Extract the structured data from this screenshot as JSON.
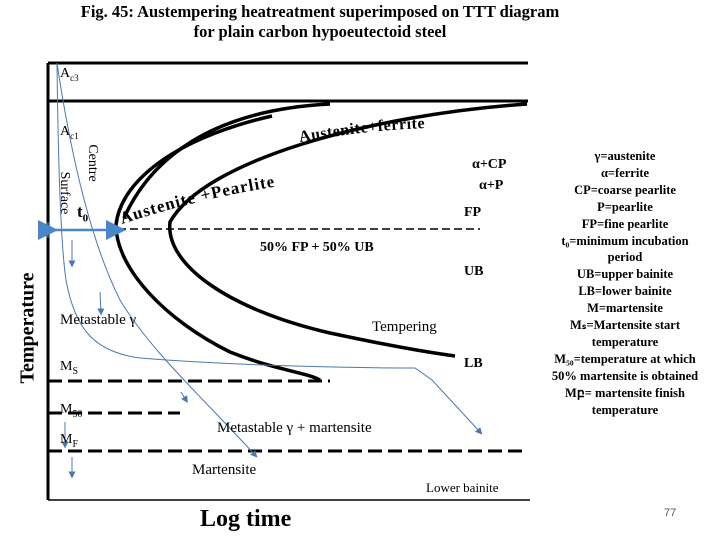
{
  "title_line1": "Fig. 45: Austempering heatreatment superimposed on TTT diagram",
  "title_line2": "for plain carbon hypoeutectoid steel",
  "axes": {
    "y_label": "Temperature",
    "x_label": "Log time"
  },
  "temps": {
    "ac3": "A",
    "ac3_sub": "c3",
    "ac1": "A",
    "ac1_sub": "c1",
    "ms": "M",
    "ms_sub": "S",
    "m50": "M",
    "m50_sub": "50",
    "mf": "M",
    "mf_sub": "F"
  },
  "labels": {
    "austenite_ferrite": "Austenite+ferrite",
    "austenite_pearlite": "Austenite +Pearlite",
    "alpha_cp": "α+CP",
    "alpha_p": "α+P",
    "fp": "FP",
    "fp_ub": "50% FP + 50% UB",
    "ub": "UB",
    "lb": "LB",
    "metastable": "Metastable γ",
    "tempering": "Tempering",
    "metastable_martensite": "Metastable  γ + martensite",
    "martensite": "Martensite",
    "lower_bainite": "Lower bainite",
    "surface": "Surface",
    "centre": "Centre",
    "t0": "t",
    "t0_sub": "0"
  },
  "glossary": [
    "γ=austenite",
    "α=ferrite",
    "CP=coarse pearlite",
    "P=pearlite",
    "FP=fine pearlite",
    "t₀=minimum incubation",
    "period",
    "UB=upper bainite",
    "LB=lower bainite",
    "M=martensite",
    "Mₛ=Martensite start",
    "temperature",
    "M₅₀=temperature at which",
    "50% martensite is obtained",
    "Mբ= martensite finish",
    "temperature"
  ],
  "page_number": "77",
  "colors": {
    "curve": "#000000",
    "cooling_path": "#4a78b0",
    "t0_marker": "#4a86c8"
  }
}
